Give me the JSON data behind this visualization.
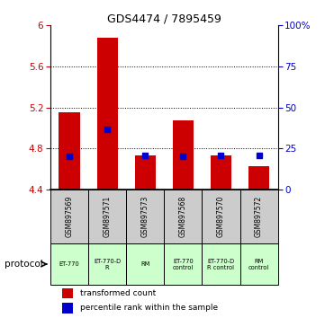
{
  "title": "GDS4474 / 7895459",
  "samples": [
    "GSM897569",
    "GSM897571",
    "GSM897573",
    "GSM897568",
    "GSM897570",
    "GSM897572"
  ],
  "protocols": [
    "ET-770",
    "ET-770-D\nR",
    "RM",
    "ET-770\ncontrol",
    "ET-770-D\nR control",
    "RM\ncontrol"
  ],
  "bar_values": [
    5.15,
    5.88,
    4.73,
    5.07,
    4.73,
    4.63
  ],
  "bar_base": 4.4,
  "blue_values": [
    4.72,
    4.99,
    4.73,
    4.72,
    4.73,
    4.73
  ],
  "bar_color": "#cc0000",
  "blue_color": "#0000cc",
  "ylim_left": [
    4.4,
    6.0
  ],
  "ylim_right": [
    0,
    100
  ],
  "yticks_left": [
    4.4,
    4.8,
    5.2,
    5.6,
    6.0
  ],
  "ytick_labels_left": [
    "4.4",
    "4.8",
    "5.2",
    "5.6",
    "6"
  ],
  "yticks_right": [
    0,
    25,
    50,
    75,
    100
  ],
  "ytick_labels_right": [
    "0",
    "25",
    "50",
    "75",
    "100%"
  ],
  "grid_yticks": [
    4.8,
    5.2,
    5.6
  ],
  "protocol_bg_light": "#ccffcc",
  "sample_bg": "#cccccc",
  "legend_red": "transformed count",
  "legend_blue": "percentile rank within the sample",
  "protocol_label": "protocol",
  "bar_width": 0.55
}
